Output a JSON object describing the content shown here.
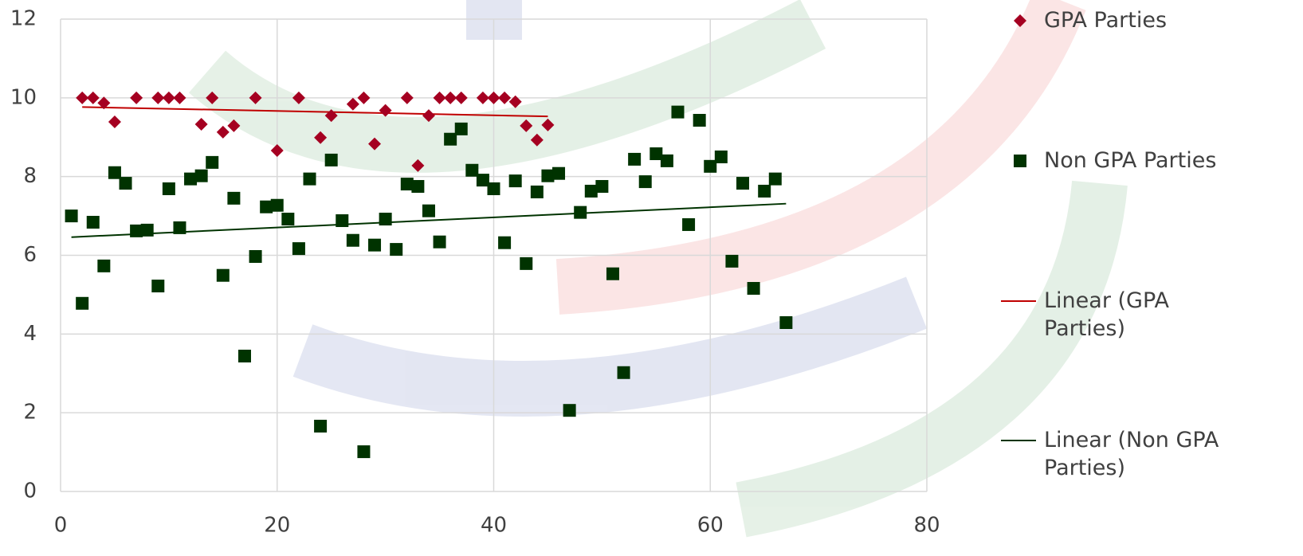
{
  "chart_data": {
    "type": "scatter",
    "xlim": [
      0,
      80
    ],
    "xticks": [
      0,
      20,
      40,
      60,
      80
    ],
    "ylim": [
      0,
      12
    ],
    "yticks": [
      0,
      2,
      4,
      6,
      8,
      10,
      12
    ],
    "grid": true,
    "legend": "right",
    "series": [
      {
        "name": "GPA Parties",
        "color": "#a50021",
        "marker": "diamond",
        "x": [
          2,
          3,
          4,
          5,
          7,
          9,
          10,
          11,
          13,
          14,
          15,
          16,
          18,
          20,
          22,
          24,
          25,
          27,
          28,
          29,
          30,
          32,
          33,
          34,
          35,
          36,
          37,
          39,
          40,
          41,
          42,
          43,
          44,
          45
        ],
        "values": [
          10,
          10,
          9.87,
          9.39,
          10,
          10,
          10,
          10,
          9.33,
          10,
          9.13,
          9.29,
          10,
          8.66,
          10,
          8.99,
          9.55,
          9.84,
          10,
          8.83,
          9.68,
          10,
          8.28,
          9.55,
          10,
          10,
          10,
          10,
          10,
          10,
          9.9,
          9.29,
          8.93,
          9.31
        ]
      },
      {
        "name": "Non GPA Parties",
        "color": "#003300",
        "marker": "square",
        "x": [
          1,
          2,
          3,
          4,
          5,
          6,
          7,
          8,
          9,
          10,
          11,
          12,
          13,
          14,
          15,
          16,
          17,
          18,
          19,
          20,
          21,
          22,
          23,
          24,
          25,
          26,
          27,
          28,
          29,
          30,
          31,
          32,
          33,
          34,
          35,
          36,
          37,
          38,
          39,
          40,
          41,
          42,
          43,
          44,
          45,
          46,
          47,
          48,
          49,
          50,
          51,
          52,
          53,
          54,
          55,
          56,
          57,
          58,
          59,
          60,
          61,
          62,
          63,
          64,
          65,
          66,
          67
        ],
        "values": [
          7.0,
          4.78,
          6.84,
          5.73,
          8.1,
          7.83,
          6.62,
          6.64,
          5.22,
          7.69,
          6.7,
          7.94,
          8.02,
          8.36,
          5.49,
          7.45,
          3.44,
          5.97,
          7.23,
          7.27,
          6.92,
          6.17,
          7.94,
          1.66,
          8.42,
          6.88,
          6.38,
          1.01,
          6.26,
          6.92,
          6.15,
          7.81,
          7.75,
          7.13,
          6.34,
          8.95,
          9.21,
          8.16,
          7.91,
          7.69,
          6.32,
          7.89,
          5.79,
          7.61,
          8.02,
          8.08,
          2.06,
          7.09,
          7.63,
          7.75,
          5.53,
          3.02,
          8.44,
          7.87,
          8.58,
          8.4,
          9.64,
          6.78,
          9.43,
          8.26,
          8.5,
          5.85,
          7.83,
          5.16,
          7.63,
          7.94,
          4.29
        ]
      }
    ],
    "trendlines": [
      {
        "name": "Linear (GPA Parties)",
        "series": 0,
        "color": "#c00000"
      },
      {
        "name": "Linear (Non GPA Parties)",
        "series": 1,
        "color": "#003300"
      }
    ]
  }
}
